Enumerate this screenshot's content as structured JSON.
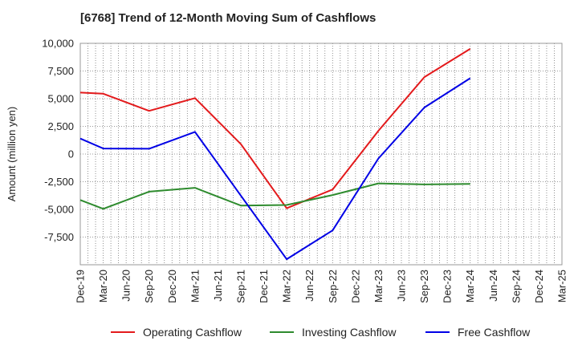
{
  "chart_data": {
    "type": "line",
    "title": "[6768]  Trend of 12-Month Moving Sum of Cashflows",
    "ylabel": "Amount (million yen)",
    "xlabel": "",
    "categories": [
      "Dec-19",
      "Mar-20",
      "Jun-20",
      "Sep-20",
      "Dec-20",
      "Mar-21",
      "Jun-21",
      "Sep-21",
      "Dec-21",
      "Mar-22",
      "Jun-22",
      "Sep-22",
      "Dec-22",
      "Mar-23",
      "Jun-23",
      "Sep-23",
      "Dec-23",
      "Mar-24",
      "Jun-24",
      "Sep-24",
      "Dec-24",
      "Mar-25"
    ],
    "ylim": [
      -10000,
      10000
    ],
    "yticks": [
      10000,
      7500,
      5000,
      2500,
      0,
      -2500,
      -5000,
      -7500
    ],
    "ytick_labels": [
      "10,000",
      "7,500",
      "5,000",
      "2,500",
      "0",
      "-2,500",
      "-5,000",
      "-7,500"
    ],
    "grid": true,
    "legend_position": "bottom",
    "series": [
      {
        "name": "Operating Cashflow",
        "color": "#e31a1c",
        "values": [
          5550,
          5450,
          null,
          3900,
          null,
          5050,
          null,
          900,
          null,
          -4900,
          null,
          -3200,
          null,
          2100,
          null,
          6950,
          null,
          9500,
          null,
          null,
          null,
          null
        ]
      },
      {
        "name": "Investing Cashflow",
        "color": "#2e8b2e",
        "values": [
          -4150,
          -4950,
          null,
          -3400,
          null,
          -3050,
          null,
          -4650,
          null,
          -4600,
          null,
          -3700,
          null,
          -2650,
          null,
          -2750,
          null,
          -2700,
          null,
          null,
          null,
          null
        ]
      },
      {
        "name": "Free Cashflow",
        "color": "#0000e6",
        "values": [
          1400,
          500,
          null,
          480,
          null,
          2000,
          null,
          -3750,
          null,
          -9500,
          null,
          -6900,
          null,
          -400,
          null,
          4200,
          null,
          6850,
          null,
          null,
          null,
          null
        ]
      }
    ]
  }
}
